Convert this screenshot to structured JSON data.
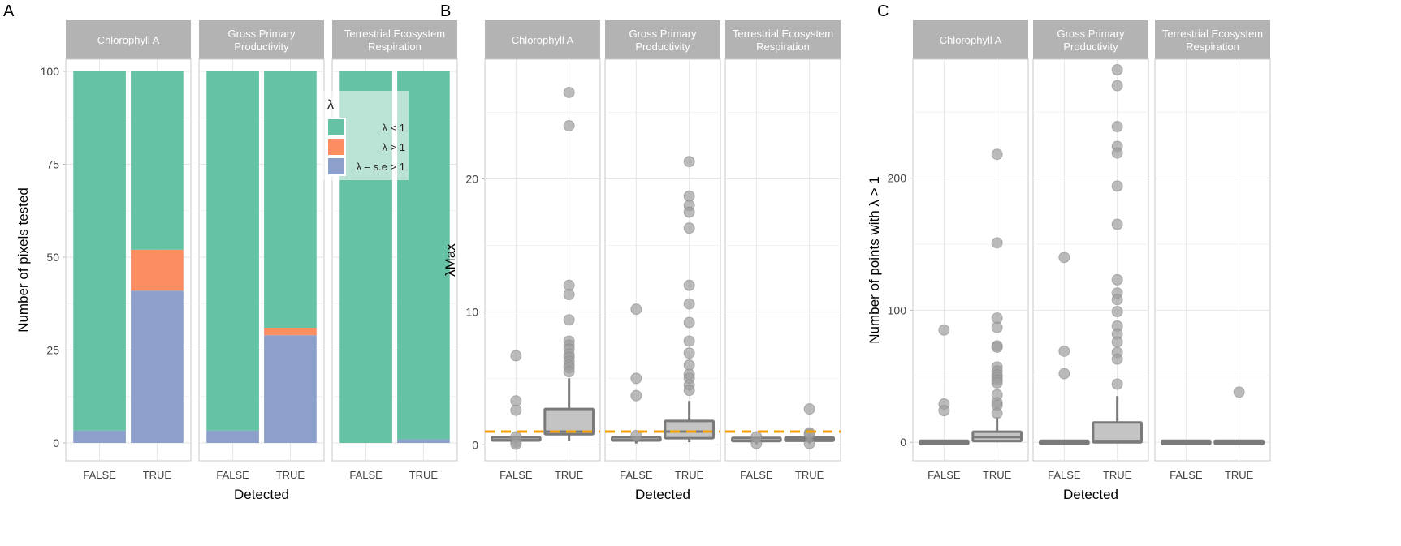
{
  "chart_data": [
    {
      "panel_label": "A",
      "type": "bar",
      "stacked": true,
      "facets": [
        "Chlorophyll A",
        "Gross Primary\nProductivity",
        "Terrestrial Ecosystem\nRespiration"
      ],
      "categories": [
        "FALSE",
        "TRUE"
      ],
      "xlabel": "Detected",
      "ylabel": "Number of pixels tested",
      "ylim": [
        0,
        100
      ],
      "yticks": [
        0,
        25,
        50,
        75,
        100
      ],
      "legend": {
        "title": "λ",
        "placement": "inside-right-top",
        "entries": [
          {
            "label": "λ < 1",
            "color": "#66c2a5"
          },
          {
            "label": "λ > 1",
            "color": "#fc8d62"
          },
          {
            "label": "λ – s.e > 1",
            "color": "#8da0cb"
          }
        ]
      },
      "series_by_facet": [
        {
          "facet": "Chlorophyll A",
          "lt1": [
            96.7,
            48
          ],
          "gt1": [
            0,
            11
          ],
          "se_gt1": [
            3.3,
            41
          ]
        },
        {
          "facet": "Gross Primary Productivity",
          "lt1": [
            96.7,
            69
          ],
          "gt1": [
            0,
            2
          ],
          "se_gt1": [
            3.3,
            29
          ]
        },
        {
          "facet": "Terrestrial Ecosystem Respiration",
          "lt1": [
            100,
            99
          ],
          "gt1": [
            0,
            0
          ],
          "se_gt1": [
            0,
            1
          ]
        }
      ]
    },
    {
      "panel_label": "B",
      "type": "box",
      "facets": [
        "Chlorophyll A",
        "Gross Primary\nProductivity",
        "Terrestrial Ecosystem\nRespiration"
      ],
      "categories": [
        "FALSE",
        "TRUE"
      ],
      "xlabel": "Detected",
      "ylabel": "λMax",
      "ylim": [
        -1.2,
        29
      ],
      "yticks": [
        0,
        10,
        20
      ],
      "reference_line": {
        "y": 1,
        "color": "#f5a000",
        "style": "dashed"
      },
      "boxes": [
        {
          "facet": 0,
          "cat": 0,
          "q1": 0.25,
          "median": 0.35,
          "q3": 0.45,
          "lo": 0.1,
          "hi": 0.6,
          "outliers": [
            6.7,
            3.3,
            2.6,
            0.6,
            0.2,
            0.05
          ]
        },
        {
          "facet": 0,
          "cat": 1,
          "q1": 0.8,
          "median": 1.0,
          "q3": 2.7,
          "lo": 0.3,
          "hi": 5.0,
          "outliers": [
            26.5,
            24.0,
            12.0,
            11.3,
            9.4,
            7.8,
            7.5,
            7.2,
            6.8,
            6.6,
            6.3,
            6.0,
            5.8,
            5.5
          ]
        },
        {
          "facet": 1,
          "cat": 0,
          "q1": 0.3,
          "median": 0.35,
          "q3": 0.45,
          "lo": 0.1,
          "hi": 0.6,
          "outliers": [
            10.2,
            5.0,
            3.7,
            0.7
          ]
        },
        {
          "facet": 1,
          "cat": 1,
          "q1": 0.5,
          "median": 1.0,
          "q3": 1.8,
          "lo": 0.2,
          "hi": 3.3,
          "outliers": [
            21.3,
            18.7,
            18.0,
            17.5,
            16.3,
            12.0,
            10.6,
            9.2,
            7.8,
            6.9,
            6.0,
            5.3,
            5.0,
            4.5,
            4.1
          ]
        },
        {
          "facet": 2,
          "cat": 0,
          "q1": 0.25,
          "median": 0.3,
          "q3": 0.4,
          "lo": 0.05,
          "hi": 0.5,
          "outliers": [
            0.6,
            0.1
          ]
        },
        {
          "facet": 2,
          "cat": 1,
          "q1": 0.3,
          "median": 0.4,
          "q3": 0.55,
          "lo": 0.1,
          "hi": 0.8,
          "outliers": [
            2.7,
            0.9,
            0.8,
            0.1
          ]
        }
      ]
    },
    {
      "panel_label": "C",
      "type": "box",
      "facets": [
        "Chlorophyll A",
        "Gross Primary\nProductivity",
        "Terrestrial Ecosystem\nRespiration"
      ],
      "categories": [
        "FALSE",
        "TRUE"
      ],
      "xlabel": "Detected",
      "ylabel": "Number of points with λ > 1",
      "ylim": [
        -14,
        290
      ],
      "yticks": [
        0,
        100,
        200
      ],
      "boxes": [
        {
          "facet": 0,
          "cat": 0,
          "q1": 0,
          "median": 0,
          "q3": 0,
          "lo": 0,
          "hi": 0,
          "outliers": [
            85,
            29,
            24
          ]
        },
        {
          "facet": 0,
          "cat": 1,
          "q1": 1,
          "median": 4,
          "q3": 8,
          "lo": 0,
          "hi": 19,
          "outliers": [
            218,
            151,
            94,
            87,
            73,
            72,
            57,
            54,
            51,
            49,
            47,
            45,
            36,
            30,
            28,
            22
          ]
        },
        {
          "facet": 1,
          "cat": 0,
          "q1": 0,
          "median": 0,
          "q3": 0,
          "lo": 0,
          "hi": 0,
          "outliers": [
            140,
            69,
            52
          ]
        },
        {
          "facet": 1,
          "cat": 1,
          "q1": 0,
          "median": 1,
          "q3": 15,
          "lo": 0,
          "hi": 35,
          "outliers": [
            282,
            270,
            239,
            224,
            219,
            194,
            165,
            123,
            113,
            108,
            99,
            88,
            82,
            76,
            68,
            63,
            44
          ]
        },
        {
          "facet": 2,
          "cat": 0,
          "q1": 0,
          "median": 0,
          "q3": 0,
          "lo": 0,
          "hi": 0,
          "outliers": []
        },
        {
          "facet": 2,
          "cat": 1,
          "q1": 0,
          "median": 0,
          "q3": 0,
          "lo": 0,
          "hi": 0,
          "outliers": [
            38
          ]
        }
      ]
    }
  ]
}
